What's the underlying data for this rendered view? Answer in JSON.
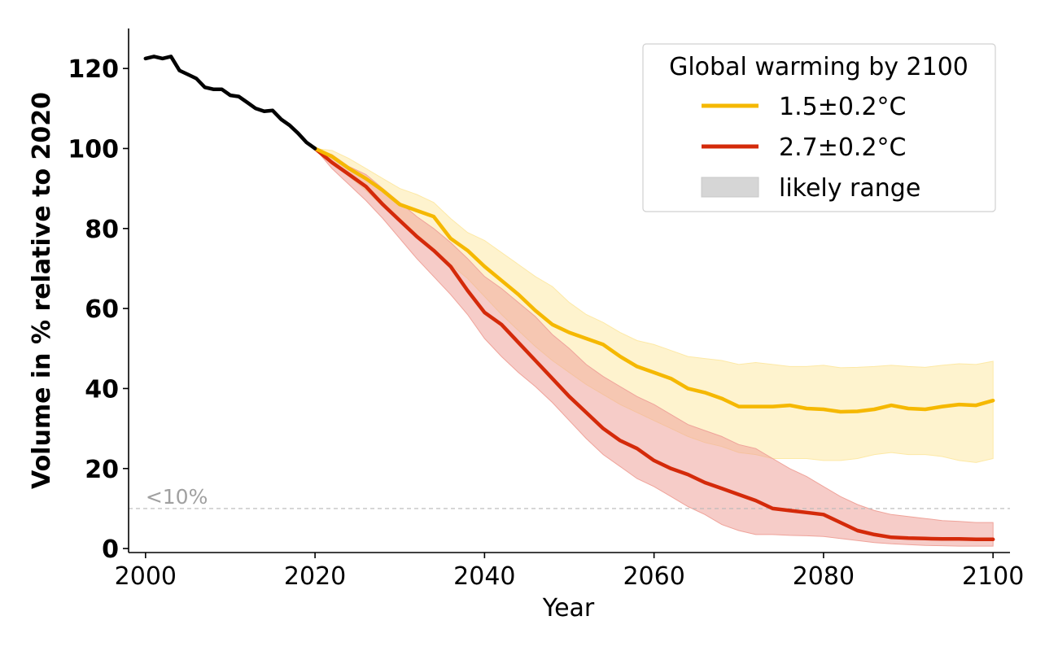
{
  "chart_data": {
    "type": "line",
    "title": "",
    "xlabel": "Year",
    "ylabel": "Volume in % relative to 2020",
    "xlim": [
      1998,
      2102
    ],
    "ylim": [
      -1,
      130
    ],
    "xticks": [
      2000,
      2020,
      2040,
      2060,
      2080,
      2100
    ],
    "yticks": [
      0,
      20,
      40,
      60,
      80,
      100,
      120
    ],
    "grid": false,
    "legend": {
      "title": "Global warming by 2100",
      "position": "top-right",
      "entries": [
        {
          "label": "1.5±0.2°C",
          "kind": "line",
          "series": "s15"
        },
        {
          "label": "2.7±0.2°C",
          "kind": "line",
          "series": "s27"
        },
        {
          "label": "likely range",
          "kind": "patch"
        }
      ]
    },
    "threshold": {
      "y": 10,
      "label": "<10%",
      "color": "#b0b0b0"
    },
    "historical": {
      "name": "observed",
      "color": "#000000",
      "x": [
        2000,
        2001,
        2002,
        2003,
        2004,
        2005,
        2006,
        2007,
        2008,
        2009,
        2010,
        2011,
        2012,
        2013,
        2014,
        2015,
        2016,
        2017,
        2018,
        2019,
        2020
      ],
      "y": [
        122.5,
        123,
        122.5,
        123,
        119.5,
        118.5,
        117.5,
        115.3,
        114.8,
        114.8,
        113.3,
        113,
        111.5,
        110,
        109.3,
        109.5,
        107.3,
        105.8,
        103.8,
        101.5,
        100
      ]
    },
    "series": [
      {
        "id": "s15",
        "name": "1.5±0.2°C",
        "color": "#f5b800",
        "band_color": "#fde9a6",
        "x": [
          2020,
          2022,
          2024,
          2026,
          2028,
          2030,
          2032,
          2034,
          2036,
          2038,
          2040,
          2042,
          2044,
          2046,
          2048,
          2050,
          2052,
          2054,
          2056,
          2058,
          2060,
          2062,
          2064,
          2066,
          2068,
          2070,
          2072,
          2074,
          2076,
          2078,
          2080,
          2082,
          2084,
          2086,
          2088,
          2090,
          2092,
          2094,
          2096,
          2098,
          2100
        ],
        "y": [
          100,
          98,
          95,
          92.5,
          89.5,
          86,
          84.5,
          83,
          77.5,
          74.5,
          70.5,
          67,
          63.5,
          59.5,
          56,
          54,
          52.5,
          51,
          48,
          45.5,
          44,
          42.5,
          40,
          39,
          37.5,
          35.5,
          35.5,
          35.5,
          35.8,
          35,
          34.8,
          34.2,
          34.3,
          34.8,
          35.8,
          35,
          34.8,
          35.5,
          36,
          35.8,
          37
        ],
        "lower": [
          100,
          96.5,
          93,
          89.5,
          85.5,
          82,
          78,
          75,
          71,
          67.5,
          63,
          58.5,
          54.5,
          50.5,
          47,
          44,
          41,
          38.5,
          36,
          34,
          32,
          30,
          28,
          26.5,
          25.5,
          24,
          23.5,
          22.5,
          22.5,
          22.5,
          22,
          22,
          22.5,
          23.5,
          24,
          23.5,
          23.5,
          23,
          22,
          21.5,
          22.5
        ],
        "upper": [
          100,
          99.5,
          97.5,
          95,
          92.5,
          90,
          88.5,
          86.5,
          82.5,
          79,
          77,
          74,
          71,
          68,
          65.5,
          61.5,
          58.5,
          56.5,
          54,
          52,
          51,
          49.5,
          48,
          47.5,
          47,
          46,
          46.5,
          46,
          45.5,
          45.5,
          45.8,
          45.2,
          45.3,
          45.5,
          45.8,
          45.5,
          45.3,
          45.8,
          46.2,
          46,
          46.8
        ]
      },
      {
        "id": "s27",
        "name": "2.7±0.2°C",
        "color": "#d42a0a",
        "band_color": "#efa39a",
        "x": [
          2020,
          2022,
          2024,
          2026,
          2028,
          2030,
          2032,
          2034,
          2036,
          2038,
          2040,
          2042,
          2044,
          2046,
          2048,
          2050,
          2052,
          2054,
          2056,
          2058,
          2060,
          2062,
          2064,
          2066,
          2068,
          2070,
          2072,
          2074,
          2076,
          2078,
          2080,
          2082,
          2084,
          2086,
          2088,
          2090,
          2092,
          2094,
          2096,
          2098,
          2100
        ],
        "y": [
          100,
          96.5,
          93.5,
          90.5,
          86,
          82,
          78,
          74.5,
          70.5,
          64.5,
          59,
          56,
          51.5,
          47,
          42.5,
          38,
          34,
          30,
          27,
          25,
          22,
          20,
          18.5,
          16.5,
          15,
          13.5,
          12,
          10,
          9.5,
          9,
          8.5,
          6.5,
          4.5,
          3.5,
          2.8,
          2.6,
          2.5,
          2.4,
          2.4,
          2.3,
          2.3
        ],
        "lower": [
          100,
          95,
          91,
          87,
          82.5,
          77.5,
          72.5,
          68,
          63.5,
          58.5,
          52.5,
          48,
          44,
          40.5,
          36.5,
          32,
          27.5,
          23.5,
          20.5,
          17.5,
          15.5,
          13,
          10.5,
          8.5,
          6,
          4.5,
          3.5,
          3.5,
          3.3,
          3.2,
          3,
          2.5,
          2,
          1.5,
          1.2,
          1,
          0.8,
          0.7,
          0.6,
          0.6,
          0.6
        ],
        "upper": [
          100,
          98.5,
          95.5,
          93.5,
          90,
          86.5,
          83,
          80,
          76.5,
          72.5,
          68,
          65,
          61.5,
          58,
          53.5,
          50,
          46,
          43,
          40.5,
          38,
          36,
          33.5,
          31,
          29.5,
          28,
          26,
          25,
          22.5,
          20,
          18,
          15.5,
          13,
          11,
          9.5,
          8.5,
          8,
          7.5,
          7,
          6.8,
          6.5,
          6.5
        ]
      }
    ]
  }
}
